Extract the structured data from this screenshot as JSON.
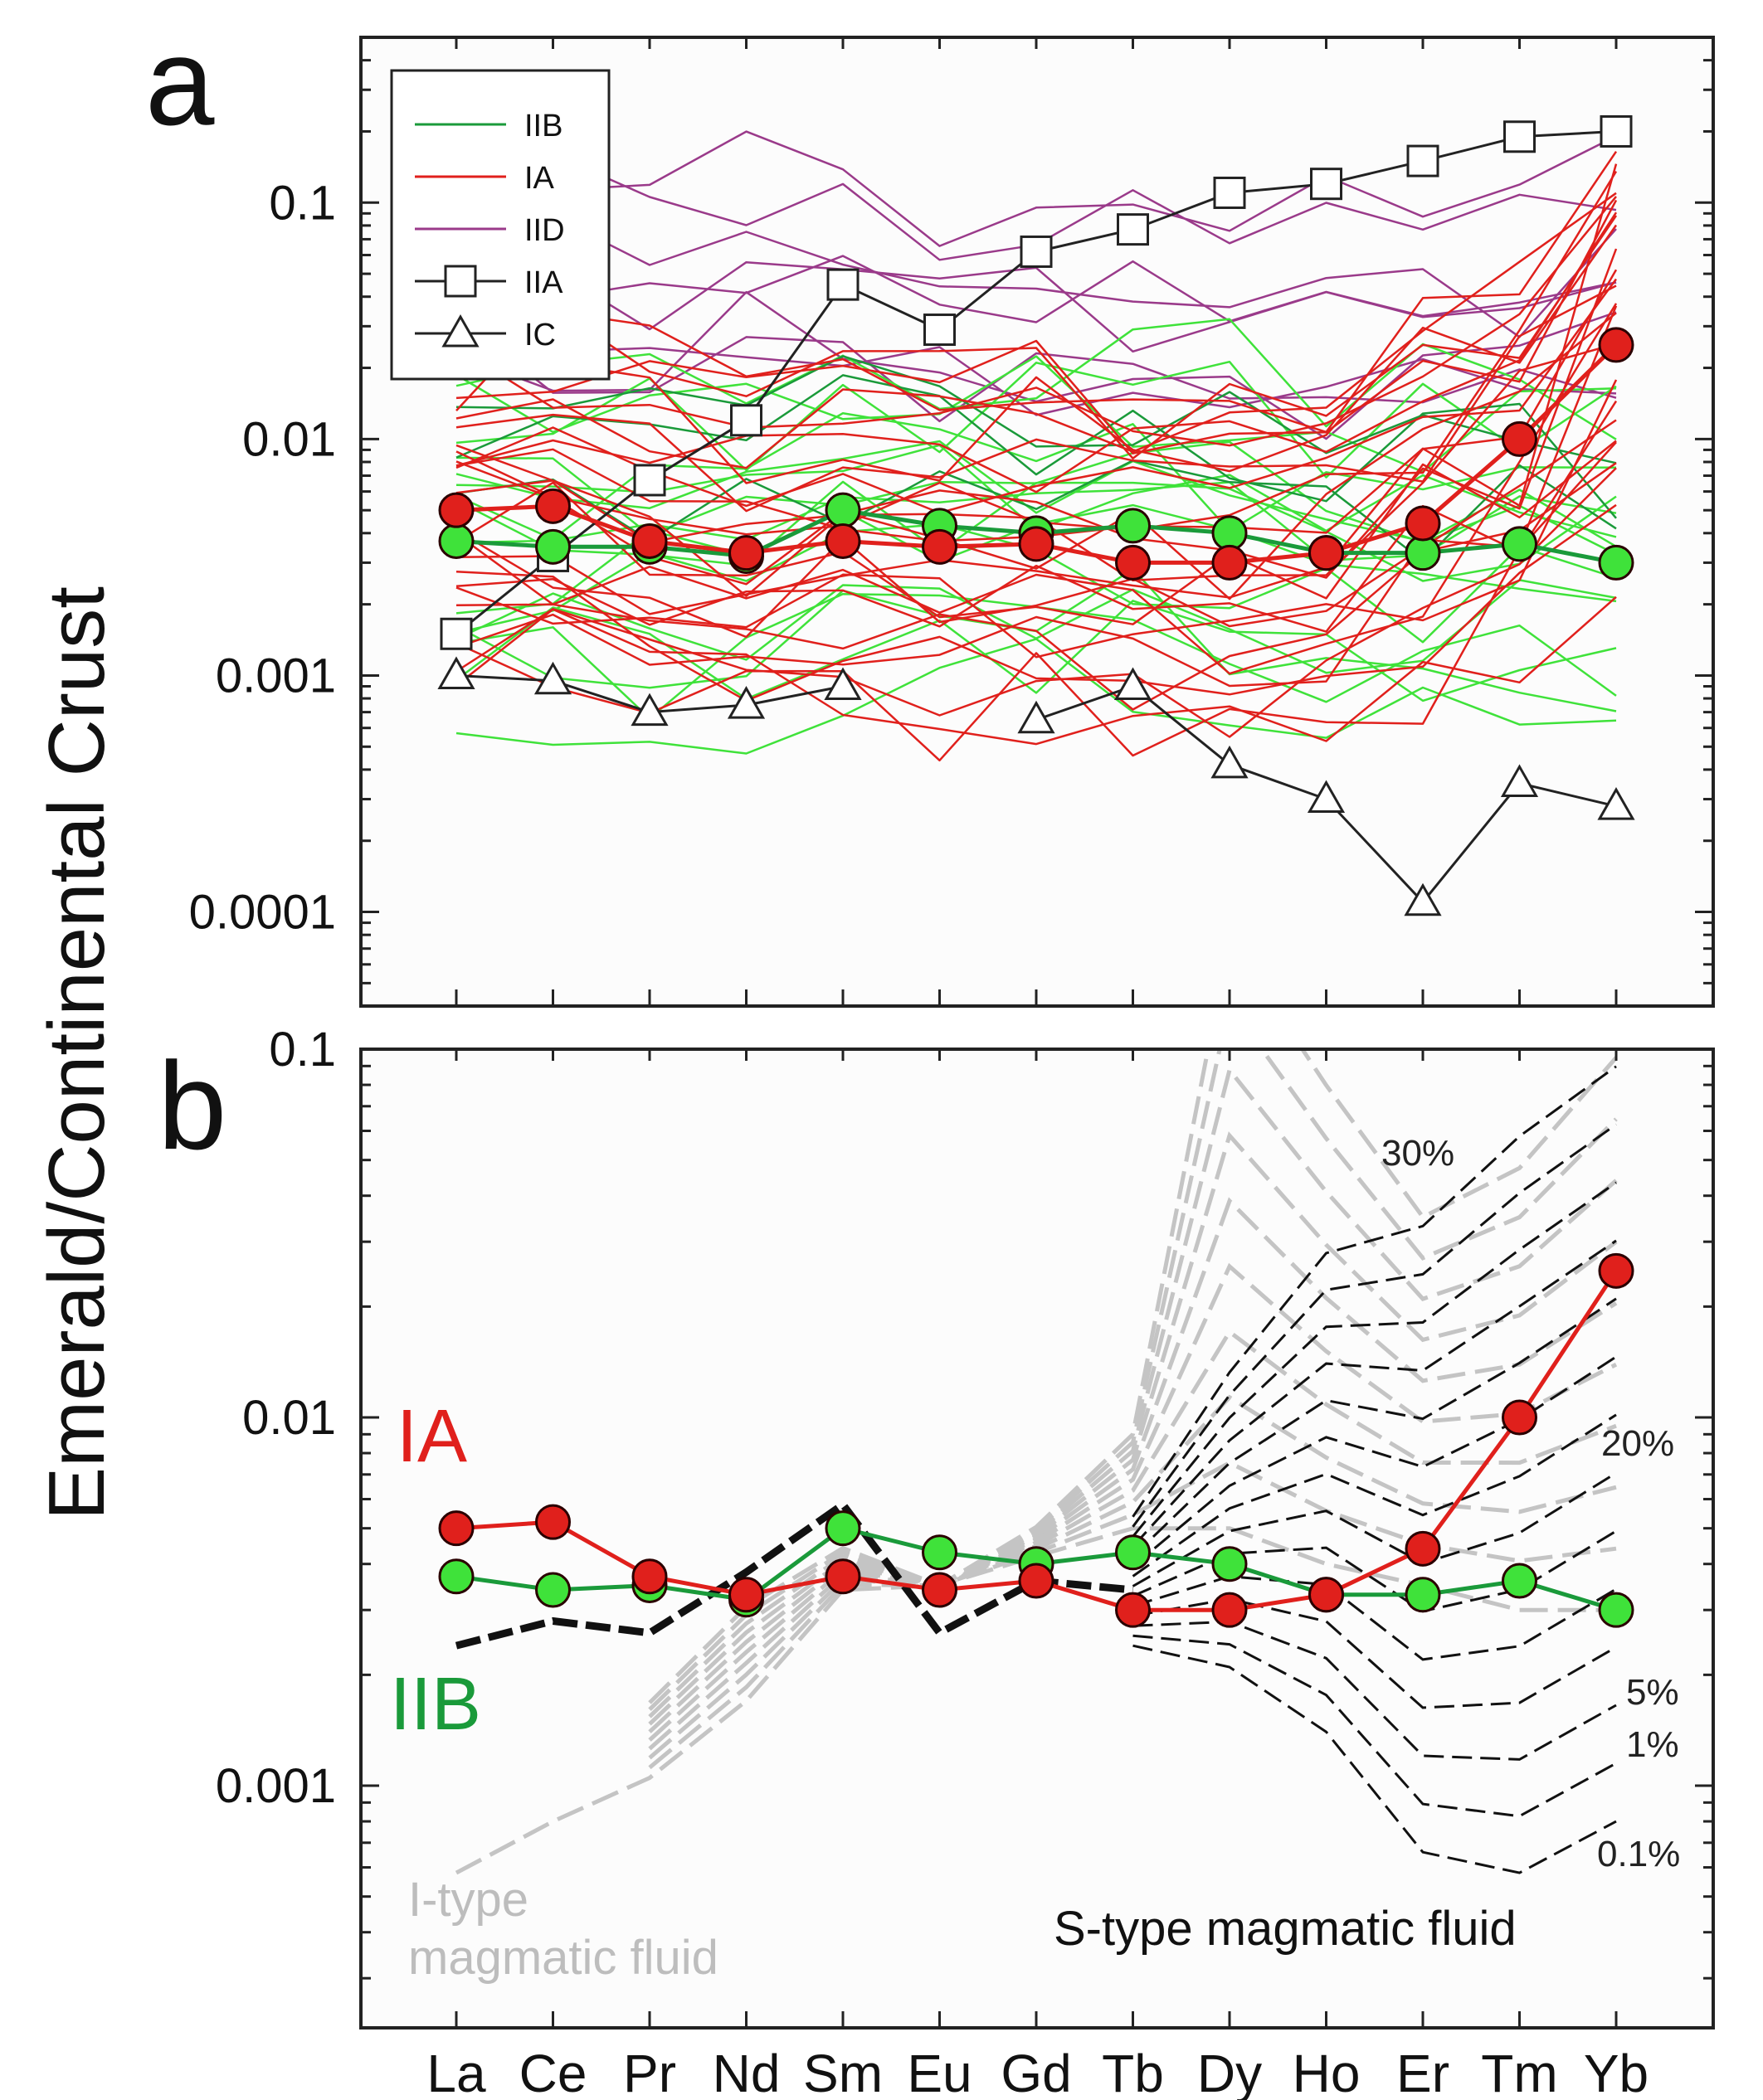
{
  "colors": {
    "IIB": "#1a9a3a",
    "IIB_light": "#3fe23a",
    "IA": "#e0201c",
    "IID": "#9a3a8a",
    "IIA": "#222222",
    "IC": "#222222",
    "grey": "#c4c4c4"
  },
  "chart_data": [
    {
      "panel": "a",
      "type": "line",
      "yscale": "log",
      "ylim": [
        4e-05,
        0.5
      ],
      "ylabel": "Emerald/Continental Crust",
      "categories": [
        "La",
        "Ce",
        "Pr",
        "Nd",
        "Sm",
        "Eu",
        "Gd",
        "Tb",
        "Dy",
        "Ho",
        "Er",
        "Tm",
        "Yb"
      ],
      "yticks": [
        "0.1",
        "0.01",
        "0.001",
        "0.0001"
      ],
      "ytick_values": [
        0.1,
        0.01,
        0.001,
        0.0001
      ],
      "legend": [
        "IIB",
        "IA",
        "IID",
        "IIA",
        "IC"
      ],
      "series": [
        {
          "name": "IIA",
          "marker": "square",
          "values": [
            0.0015,
            0.0032,
            0.0067,
            0.012,
            0.045,
            0.029,
            0.062,
            0.077,
            0.11,
            0.12,
            0.15,
            0.19,
            0.2
          ]
        },
        {
          "name": "IC",
          "marker": "triangle",
          "values": [
            0.001,
            0.00095,
            0.0007,
            0.00075,
            0.0009,
            null,
            0.00065,
            0.0009,
            0.00042,
            0.0003,
            0.00011,
            0.00035,
            0.00028
          ]
        },
        {
          "name": "IA average",
          "marker": "circle",
          "values": [
            0.005,
            0.0052,
            0.0037,
            0.0033,
            0.0037,
            0.0035,
            0.0036,
            0.003,
            0.003,
            0.0033,
            0.0044,
            0.01,
            0.025
          ]
        },
        {
          "name": "IIB average",
          "marker": "circle",
          "values": [
            0.0037,
            0.0035,
            0.0035,
            0.0032,
            0.005,
            0.0043,
            0.004,
            0.0043,
            0.004,
            0.0033,
            0.0033,
            0.0036,
            0.003
          ]
        }
      ]
    },
    {
      "panel": "b",
      "type": "line",
      "yscale": "log",
      "ylim": [
        0.00022,
        0.1
      ],
      "categories": [
        "La",
        "Ce",
        "Pr",
        "Nd",
        "Sm",
        "Eu",
        "Gd",
        "Tb",
        "Dy",
        "Ho",
        "Er",
        "Tm",
        "Yb"
      ],
      "yticks": [
        "0.1",
        "0.01",
        "0.001"
      ],
      "ytick_values": [
        0.1,
        0.01,
        0.001
      ],
      "series": [
        {
          "name": "IA",
          "label": "IA",
          "marker": "circle",
          "values": [
            0.005,
            0.0052,
            0.0037,
            0.0033,
            0.0037,
            0.0034,
            0.0036,
            0.003,
            0.003,
            0.0033,
            0.0044,
            0.01,
            0.025
          ]
        },
        {
          "name": "IIB",
          "label": "IIB",
          "marker": "circle",
          "values": [
            0.0037,
            0.0034,
            0.0035,
            0.0032,
            0.005,
            0.0043,
            0.004,
            0.0043,
            0.004,
            0.0033,
            0.0033,
            0.0036,
            0.003
          ]
        }
      ],
      "annotations": {
        "pct_30": "30%",
        "pct_20": "20%",
        "pct_5": "5%",
        "pct_1": "1%",
        "pct_01": "0.1%",
        "itype_1": "I-type",
        "itype_2": "magmatic fluid",
        "stype": "S-type magmatic fluid"
      }
    }
  ],
  "panel_labels": {
    "a": "a",
    "b": "b"
  }
}
